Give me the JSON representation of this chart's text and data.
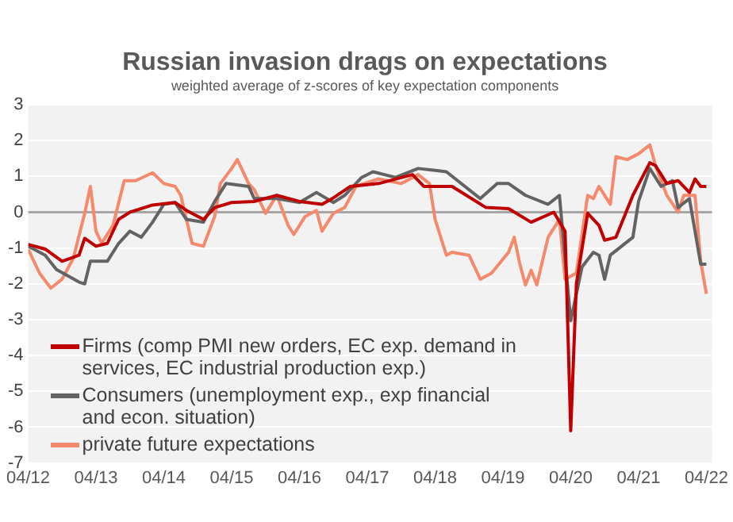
{
  "chart_data": {
    "type": "line",
    "title": "Russian invasion drags on expectations",
    "subtitle": "weighted average of z-scores of key expectation components",
    "xlim": [
      "2012-04",
      "2022-05"
    ],
    "xticks": [
      {
        "value": "2012-04",
        "label": "04/12"
      },
      {
        "value": "2013-04",
        "label": "04/13"
      },
      {
        "value": "2014-04",
        "label": "04/14"
      },
      {
        "value": "2015-04",
        "label": "04/15"
      },
      {
        "value": "2016-04",
        "label": "04/16"
      },
      {
        "value": "2017-04",
        "label": "04/17"
      },
      {
        "value": "2018-04",
        "label": "04/18"
      },
      {
        "value": "2019-04",
        "label": "04/19"
      },
      {
        "value": "2020-04",
        "label": "04/20"
      },
      {
        "value": "2021-04",
        "label": "04/21"
      },
      {
        "value": "2022-04",
        "label": "04/22"
      }
    ],
    "ylim": [
      -7,
      3
    ],
    "yticks": [
      -7,
      -6,
      -5,
      -4,
      -3,
      -2,
      -1,
      0,
      1,
      2,
      3
    ],
    "grid": "y",
    "legend": "bottom left",
    "line_style": "solid",
    "marker": "none",
    "ref_lines": [
      {
        "axis": "y",
        "value": 0,
        "color": "#a6a6a6"
      }
    ],
    "series": [
      {
        "name": "Firms (comp PMI new orders, EC exp. demand in services, EC industrial production exp.)",
        "color": "#c00000",
        "x": [
          "2012-04",
          "2012-07",
          "2012-10",
          "2013-01",
          "2013-02",
          "2013-04",
          "2013-06",
          "2013-08",
          "2013-10",
          "2014-02",
          "2014-06",
          "2014-08",
          "2014-11",
          "2015-01",
          "2015-04",
          "2015-08",
          "2015-12",
          "2016-04",
          "2016-08",
          "2016-10",
          "2017-01",
          "2017-06",
          "2017-12",
          "2018-02",
          "2018-07",
          "2019-01",
          "2019-05",
          "2019-09",
          "2020-01",
          "2020-03",
          "2020-04",
          "2020-05",
          "2020-07",
          "2020-09",
          "2020-10",
          "2020-12",
          "2021-03",
          "2021-06",
          "2021-07",
          "2021-09",
          "2021-11",
          "2022-01",
          "2022-02",
          "2022-03",
          "2022-04"
        ],
        "values": [
          -0.9,
          -1.03,
          -1.37,
          -1.2,
          -0.73,
          -0.95,
          -0.87,
          -0.2,
          0,
          0.2,
          0.27,
          0.05,
          -0.2,
          0.13,
          0.27,
          0.3,
          0.47,
          0.3,
          0.22,
          0.4,
          0.72,
          0.8,
          1.05,
          0.72,
          0.72,
          0.13,
          0.1,
          -0.28,
          0,
          -0.53,
          -6.1,
          -2.0,
          -0.03,
          -0.37,
          -0.78,
          -0.7,
          0.47,
          1.38,
          1.3,
          0.8,
          0.88,
          0.55,
          0.93,
          0.72,
          0.72
        ]
      },
      {
        "name": "Consumers (unemployment exp., exp financial and econ. situation)",
        "color": "#636363",
        "x": [
          "2012-04",
          "2012-07",
          "2012-09",
          "2013-01",
          "2013-02",
          "2013-03",
          "2013-06",
          "2013-08",
          "2013-10",
          "2013-12",
          "2014-02",
          "2014-04",
          "2014-06",
          "2014-08",
          "2014-11",
          "2015-01",
          "2015-03",
          "2015-07",
          "2015-08",
          "2015-12",
          "2016-04",
          "2016-07",
          "2016-10",
          "2016-12",
          "2017-03",
          "2017-05",
          "2017-09",
          "2018-01",
          "2018-04",
          "2018-06",
          "2018-12",
          "2019-03",
          "2019-05",
          "2019-08",
          "2019-12",
          "2020-02",
          "2020-04",
          "2020-06",
          "2020-08",
          "2020-09",
          "2020-10",
          "2020-11",
          "2021-03",
          "2021-04",
          "2021-06",
          "2021-08",
          "2021-10",
          "2021-11",
          "2022-01",
          "2022-03",
          "2022-04"
        ],
        "values": [
          -0.95,
          -1.2,
          -1.6,
          -1.95,
          -2.0,
          -1.37,
          -1.37,
          -0.87,
          -0.53,
          -0.7,
          -0.28,
          0.22,
          0.27,
          -0.2,
          -0.28,
          0.3,
          0.8,
          0.72,
          0.38,
          0.38,
          0.27,
          0.55,
          0.27,
          0.47,
          0.97,
          1.13,
          0.97,
          1.22,
          1.17,
          1.13,
          0.38,
          0.8,
          0.8,
          0.47,
          0.22,
          0.47,
          -3.03,
          -1.53,
          -1.12,
          -1.2,
          -1.87,
          -1.2,
          -0.7,
          0.3,
          1.22,
          0.72,
          0.88,
          0.13,
          0.38,
          -1.45,
          -1.45
        ]
      },
      {
        "name": "private future expectations",
        "color": "#f4896b",
        "x": [
          "2012-04",
          "2012-06",
          "2012-08",
          "2012-10",
          "2012-12",
          "2013-02",
          "2013-03",
          "2013-04",
          "2013-05",
          "2013-07",
          "2013-09",
          "2013-11",
          "2014-02",
          "2014-04",
          "2014-06",
          "2014-07",
          "2014-09",
          "2014-11",
          "2015-01",
          "2015-02",
          "2015-04",
          "2015-05",
          "2015-07",
          "2015-08",
          "2015-10",
          "2015-12",
          "2016-02",
          "2016-03",
          "2016-05",
          "2016-07",
          "2016-08",
          "2016-10",
          "2016-12",
          "2017-02",
          "2017-06",
          "2017-10",
          "2018-01",
          "2018-03",
          "2018-04",
          "2018-06",
          "2018-07",
          "2018-10",
          "2018-12",
          "2019-02",
          "2019-05",
          "2019-06",
          "2019-07",
          "2019-08",
          "2019-09",
          "2019-10",
          "2019-12",
          "2020-02",
          "2020-03",
          "2020-05",
          "2020-07",
          "2020-08",
          "2020-09",
          "2020-11",
          "2020-12",
          "2021-02",
          "2021-04",
          "2021-06",
          "2021-07",
          "2021-09",
          "2021-11",
          "2021-12",
          "2022-02",
          "2022-03",
          "2022-04"
        ],
        "values": [
          -1.03,
          -1.7,
          -2.12,
          -1.87,
          -1.28,
          -0.03,
          0.72,
          -0.53,
          -0.87,
          -0.37,
          0.88,
          0.88,
          1.1,
          0.8,
          0.72,
          0.47,
          -0.87,
          -0.95,
          -0.12,
          0.8,
          1.22,
          1.47,
          0.8,
          0.63,
          -0.03,
          0.47,
          -0.37,
          -0.62,
          -0.12,
          0.05,
          -0.53,
          -0.03,
          0.13,
          0.72,
          0.93,
          0.8,
          1.05,
          0.8,
          -0.2,
          -1.2,
          -1.12,
          -1.2,
          -1.87,
          -1.7,
          -1.12,
          -0.7,
          -1.45,
          -2.03,
          -1.62,
          -2.03,
          -0.7,
          -0.2,
          -1.87,
          -1.7,
          0.47,
          0.38,
          0.72,
          0.22,
          1.55,
          1.47,
          1.63,
          1.88,
          1.3,
          0.47,
          0,
          0.47,
          0.47,
          -1.37,
          -2.28
        ]
      }
    ]
  }
}
